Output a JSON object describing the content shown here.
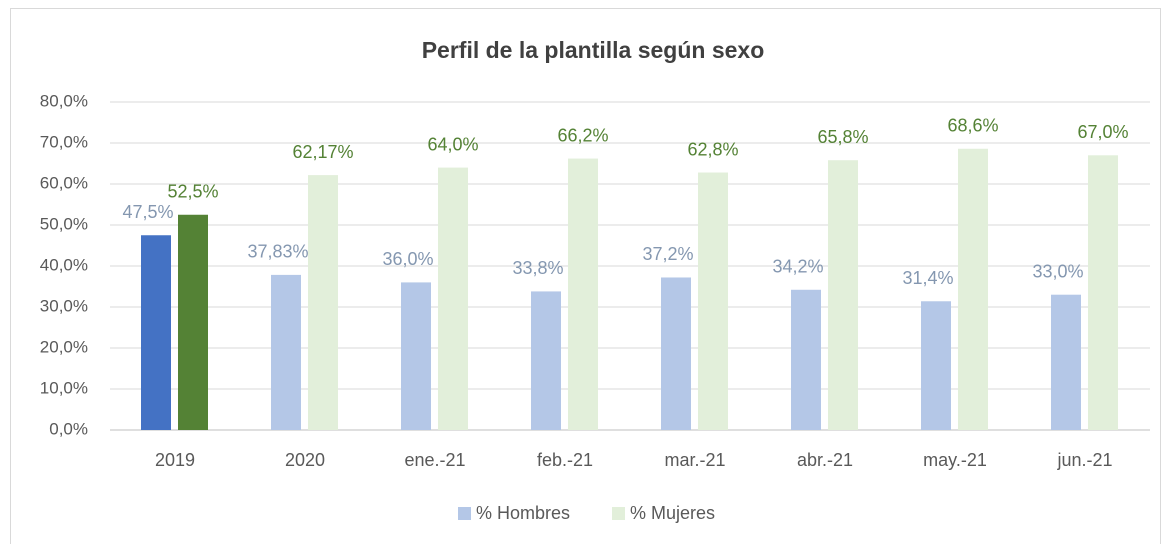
{
  "chart_data": {
    "type": "bar",
    "title": "Perfil de la plantilla según sexo",
    "categories": [
      "2019",
      "2020",
      "ene.-21",
      "feb.-21",
      "mar.-21",
      "abr.-21",
      "may.-21",
      "jun.-21"
    ],
    "series": [
      {
        "name": "% Hombres",
        "color": "#b4c7e7",
        "label_color": "#8497b0",
        "point_colors": [
          "#4472c4",
          "#b4c7e7",
          "#b4c7e7",
          "#b4c7e7",
          "#b4c7e7",
          "#b4c7e7",
          "#b4c7e7",
          "#b4c7e7"
        ],
        "values": [
          47.5,
          37.83,
          36.0,
          33.8,
          37.2,
          34.2,
          31.4,
          33.0
        ],
        "value_labels": [
          "47,5%",
          "37,83%",
          "36,0%",
          "33,8%",
          "37,2%",
          "34,2%",
          "31,4%",
          "33,0%"
        ]
      },
      {
        "name": "% Mujeres",
        "color": "#e2efda",
        "label_color": "#548235",
        "point_colors": [
          "#548235",
          "#e2efda",
          "#e2efda",
          "#e2efda",
          "#e2efda",
          "#e2efda",
          "#e2efda",
          "#e2efda"
        ],
        "values": [
          52.5,
          62.17,
          64.0,
          66.2,
          62.8,
          65.8,
          68.6,
          67.0
        ],
        "value_labels": [
          "52,5%",
          "62,17%",
          "64,0%",
          "66,2%",
          "62,8%",
          "65,8%",
          "68,6%",
          "67,0%"
        ]
      }
    ],
    "ylim": [
      0,
      80
    ],
    "yticks": [
      {
        "value": 0,
        "label": "0,0%"
      },
      {
        "value": 10,
        "label": "10,0%"
      },
      {
        "value": 20,
        "label": "20,0%"
      },
      {
        "value": 30,
        "label": "30,0%"
      },
      {
        "value": 40,
        "label": "40,0%"
      },
      {
        "value": 50,
        "label": "50,0%"
      },
      {
        "value": 60,
        "label": "60,0%"
      },
      {
        "value": 70,
        "label": "70,0%"
      },
      {
        "value": 80,
        "label": "80,0%"
      }
    ],
    "grid": true,
    "legend": "bottom"
  }
}
